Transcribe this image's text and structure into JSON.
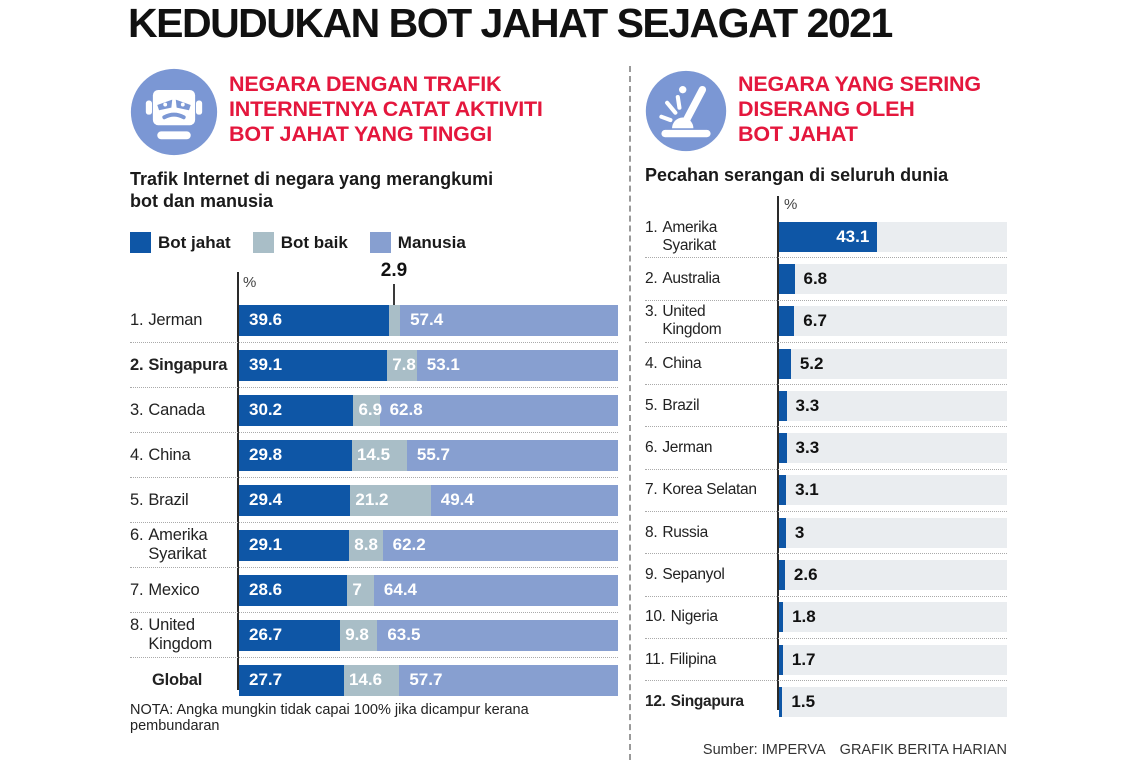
{
  "page": {
    "title": "KEDUDUKAN BOT JAHAT SEJAGAT 2021"
  },
  "colors": {
    "bot_jahat_blue": "#0e56a6",
    "bot_baik_gray": "#a9bec7",
    "manusia_periwinkle": "#879fd0",
    "bar_track": "#eaedf0",
    "accent_red": "#e4173d",
    "icon_circle_blue": "#7b97d4"
  },
  "left_panel": {
    "icon": "angry-robot-icon",
    "heading": "NEGARA DENGAN TRAFIK\nINTERNETNYA CATAT AKTIVITI\nBOT JAHAT YANG TINGGI",
    "subtitle": "Trafik Internet di negara yang merangkumi\nbot dan manusia",
    "legend": [
      {
        "label": "Bot jahat",
        "color": "#0e56a6"
      },
      {
        "label": "Bot baik",
        "color": "#a9bec7"
      },
      {
        "label": "Manusia",
        "color": "#879fd0"
      }
    ],
    "axis_unit": "%",
    "callout_value": "2.9",
    "note": "NOTA: Angka mungkin tidak capai 100% jika dicampur kerana pembundaran"
  },
  "right_panel": {
    "icon": "impact-strike-icon",
    "heading": "NEGARA YANG SERING\nDISERANG OLEH\nBOT JAHAT",
    "subtitle": "Pecahan serangan di seluruh dunia",
    "axis_unit": "%"
  },
  "footer": {
    "source": "Sumber: IMPERVA",
    "credit": "GRAFIK BERITA HARIAN"
  },
  "chart_data": [
    {
      "type": "bar",
      "orientation": "horizontal",
      "stacked": true,
      "title": "NEGARA DENGAN TRAFIK INTERNETNYA CATAT AKTIVITI BOT JAHAT YANG TINGGI",
      "subtitle": "Trafik Internet di negara yang merangkumi bot dan manusia",
      "unit": "%",
      "xlim": [
        0,
        100
      ],
      "grid": false,
      "legend_position": "top-left",
      "categories": [
        "1. Jerman",
        "2. Singapura",
        "3. Canada",
        "4. China",
        "5. Brazil",
        "6. Amerika\nSyarikat",
        "7. Mexico",
        "8. United\nKingdom",
        "Global"
      ],
      "emphasized_categories": [
        "2. Singapura",
        "Global"
      ],
      "series": [
        {
          "name": "Bot jahat",
          "color": "#0e56a6",
          "values": [
            39.6,
            39.1,
            30.2,
            29.8,
            29.4,
            29.1,
            28.6,
            26.7,
            27.7
          ],
          "labels": [
            "39.6",
            "39.1",
            "30.2",
            "29.8",
            "29.4",
            "29.1",
            "28.6",
            "26.7",
            "27.7"
          ]
        },
        {
          "name": "Bot baik",
          "color": "#a9bec7",
          "values": [
            2.9,
            7.8,
            6.9,
            14.5,
            21.2,
            8.8,
            7,
            9.8,
            14.6
          ],
          "labels": [
            "",
            "7.8",
            "6.9",
            "14.5",
            "21.2",
            "8.8",
            "7",
            "9.8",
            "14.6"
          ],
          "callout_label": "2.9"
        },
        {
          "name": "Manusia",
          "color": "#879fd0",
          "values": [
            57.4,
            53.1,
            62.8,
            55.7,
            49.4,
            62.2,
            64.4,
            63.5,
            57.7
          ],
          "labels": [
            "57.4",
            "53.1",
            "62.8",
            "55.7",
            "49.4",
            "62.2",
            "64.4",
            "63.5",
            "57.7"
          ]
        }
      ],
      "note": "NOTA: Angka mungkin tidak capai 100% jika dicampur kerana pembundaran"
    },
    {
      "type": "bar",
      "orientation": "horizontal",
      "stacked": false,
      "title": "NEGARA YANG SERING DISERANG OLEH BOT JAHAT",
      "subtitle": "Pecahan serangan di seluruh dunia",
      "unit": "%",
      "xlim": [
        0,
        100
      ],
      "grid": false,
      "bar_color": "#0e56a6",
      "track_color": "#eaedf0",
      "categories": [
        "1. Amerika\nSyarikat",
        "2. Australia",
        "3. United\nKingdom",
        "4. China",
        "5. Brazil",
        "6. Jerman",
        "7. Korea Selatan",
        "8. Russia",
        "9. Sepanyol",
        "10. Nigeria",
        "11. Filipina",
        "12. Singapura"
      ],
      "emphasized_categories": [
        "12. Singapura"
      ],
      "values": [
        43.1,
        6.8,
        6.7,
        5.2,
        3.3,
        3.3,
        3.1,
        3,
        2.6,
        1.8,
        1.7,
        1.5
      ],
      "labels": [
        "43.1",
        "6.8",
        "6.7",
        "5.2",
        "3.3",
        "3.3",
        "3.1",
        "3",
        "2.6",
        "1.8",
        "1.7",
        "1.5"
      ]
    }
  ]
}
